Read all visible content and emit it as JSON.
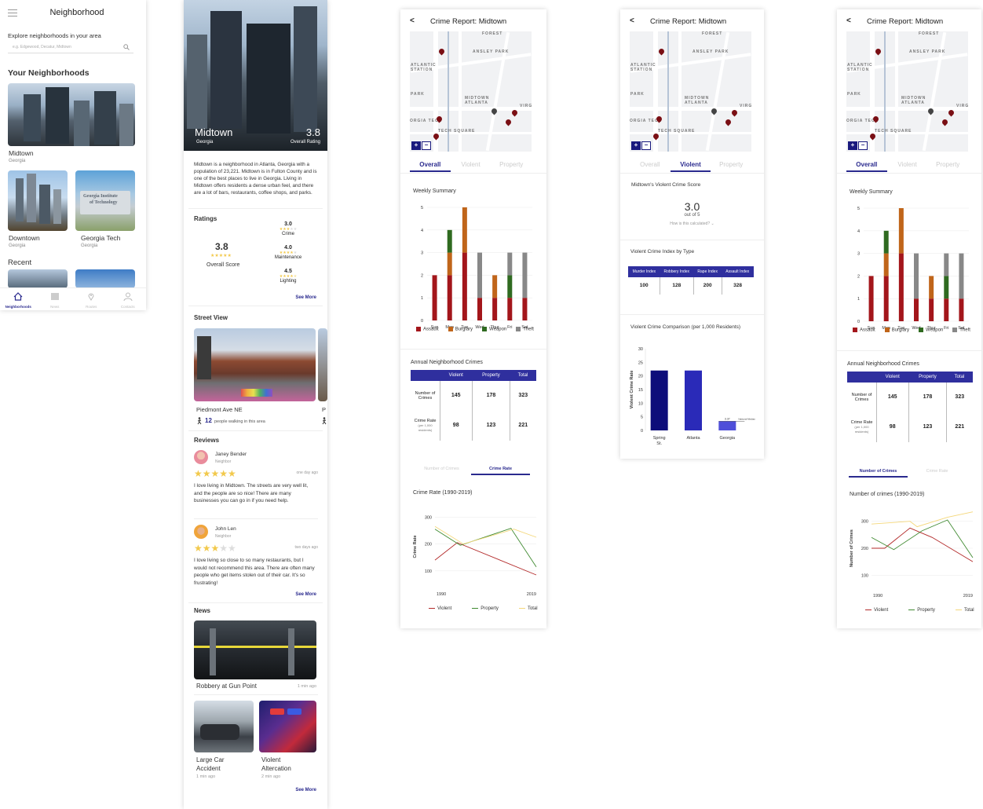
{
  "screen1": {
    "title": "Neighborhood",
    "explore_label": "Explore neighborhoods in your area",
    "search_placeholder": "e.g. Edgewood, Decatur, Midtown",
    "your_heading": "Your Neighborhoods",
    "neighborhoods": [
      {
        "name": "Midtown",
        "sub": "Georgia"
      },
      {
        "name": "Downtown",
        "sub": "Georgia"
      },
      {
        "name": "Georgia Tech",
        "sub": "Georgia"
      }
    ],
    "recent_heading": "Recent",
    "nav": [
      {
        "label": "Neighborhoods",
        "icon": "home-icon"
      },
      {
        "label": "News",
        "icon": "news-icon"
      },
      {
        "label": "Routes",
        "icon": "location-pin-icon"
      },
      {
        "label": "Contacts",
        "icon": "person-icon"
      }
    ]
  },
  "screen2": {
    "hero_title": "Midtown",
    "hero_sub": "Georgia",
    "hero_rating": "3.8",
    "hero_rating_label": "Overall Rating",
    "description": "Midtown is a neighborhood in Atlanta, Georgia with a population of 23,221. Midtown is in Fulton County and is one of the best places to live in Georgia. Living in Midtown offers residents a dense urban feel, and there are a lot of bars, restaurants, coffee shops, and parks.",
    "ratings_heading": "Ratings",
    "overall_score": "3.8",
    "overall_label": "Overall Score",
    "ratings": [
      {
        "value": "3.0",
        "label": "Crime",
        "stars": 3
      },
      {
        "value": "4.0",
        "label": "Maintenance",
        "stars": 4
      },
      {
        "value": "4.5",
        "label": "Lighting",
        "stars": 4.5
      }
    ],
    "see_more": "See More",
    "street_heading": "Street View",
    "street_name": "Piedmont Ave NE",
    "street_next_initial": "P",
    "walking_count": "12",
    "walking_text": "people walking in this area",
    "reviews_heading": "Reviews",
    "reviews": [
      {
        "name": "Janey Bender",
        "role": "Neighbor",
        "time": "one day ago",
        "stars": 5,
        "text": "I love living in Midtown. The streets are very well lit, and the people are so nice! There are many businesses you can go in if you need help."
      },
      {
        "name": "John Len",
        "role": "Neighbor",
        "time": "two days ago",
        "stars": 3,
        "text": "I love living so close to so many restaurants, but I would not recommend this area. There are often many people who get items stolen out of their car. It's so frustrating!"
      }
    ],
    "news_heading": "News",
    "news_main": {
      "title": "Robbery at Gun Point",
      "time": "1 min ago"
    },
    "news_small": [
      {
        "title": "Large Car Accident",
        "time": "1 min ago"
      },
      {
        "title": "Violent Altercation",
        "time": "2 min ago"
      }
    ]
  },
  "report": {
    "title": "Crime Report: Midtown",
    "back": "<",
    "tabs": [
      "Overall",
      "Violent",
      "Property"
    ],
    "map_labels": [
      "ANSLEY PARK",
      "ATLANTIC STATION",
      "MIDTOWN ATLANTA",
      "PARK",
      "ORGIA TECH",
      "TECH SQUARE",
      "VIRG",
      "FOREST"
    ],
    "zoom_in": "+",
    "zoom_out": "−",
    "weekly_heading": "Weekly Summary",
    "annual_heading": "Annual Neighborhood Crimes",
    "annual_cols": [
      "Violent",
      "Property",
      "Total"
    ],
    "annual_rows": [
      {
        "label": "Number of Crimes",
        "sub": "",
        "values": [
          "145",
          "178",
          "323"
        ]
      },
      {
        "label": "Crime Rate",
        "sub": "(per 1,000 residents)",
        "values": [
          "98",
          "123",
          "221"
        ]
      }
    ],
    "subtabs": [
      "Number of Crimes",
      "Crime Rate"
    ],
    "rate_heading": "Crime Rate (1990-2019)",
    "number_heading": "Number of crimes (1990-2019)"
  },
  "violent": {
    "score_heading": "Midtown's Violent Crime Score",
    "score": "3.0",
    "score_sub": "out of 5",
    "how_calc": "How is this calculated?",
    "index_heading": "Violent Crime Index by Type",
    "index_cols": [
      "Murder Index",
      "Robbery Index",
      "Rape Index",
      "Assault Index"
    ],
    "index_values": [
      "100",
      "128",
      "200",
      "328"
    ],
    "compare_heading": "Violent Crime Comparison (per 1,000 Residents)"
  },
  "chart_data": [
    {
      "type": "bar",
      "title": "Weekly Summary",
      "categories": [
        "Sun",
        "Mon",
        "Tue",
        "Wed",
        "Thur",
        "Fri",
        "Sat"
      ],
      "stacked": true,
      "ylim": [
        0,
        5
      ],
      "series": [
        {
          "name": "Assault",
          "values": [
            2,
            2,
            3,
            1,
            1,
            1,
            1
          ],
          "color": "#a3161b"
        },
        {
          "name": "Burglary",
          "values": [
            0,
            1,
            2,
            0,
            1,
            0,
            0
          ],
          "color": "#c0651a"
        },
        {
          "name": "Weapon",
          "values": [
            0,
            1,
            0,
            0,
            0,
            1,
            0
          ],
          "color": "#2f6a20"
        },
        {
          "name": "Theft",
          "values": [
            0,
            0,
            0,
            2,
            0,
            1,
            2
          ],
          "color": "#888888"
        }
      ]
    },
    {
      "type": "line",
      "title": "Crime Rate (1990-2019)",
      "ylabel": "Crime Rate",
      "x_labels": [
        "1990",
        "2019"
      ],
      "yticks": [
        100,
        200,
        300
      ],
      "ylim": [
        50,
        330
      ],
      "series": [
        {
          "name": "Violent",
          "color": "#b32a2a",
          "points": [
            [
              0,
              140
            ],
            [
              0.22,
              205
            ],
            [
              1,
              85
            ]
          ]
        },
        {
          "name": "Property",
          "color": "#3f8a30",
          "points": [
            [
              0,
              255
            ],
            [
              0.25,
              195
            ],
            [
              0.75,
              258
            ],
            [
              1,
              115
            ]
          ]
        },
        {
          "name": "Total",
          "color": "#f4d77a",
          "points": [
            [
              0,
              265
            ],
            [
              0.28,
              200
            ],
            [
              0.78,
              255
            ],
            [
              1,
              225
            ]
          ]
        }
      ]
    },
    {
      "type": "bar",
      "title": "Violent Crime Comparison (per 1,000 Residents)",
      "ylabel": "Violent Crime Rate",
      "categories": [
        "Spring St.",
        "Atlanta",
        "Georgia"
      ],
      "values": [
        22,
        22,
        3.37
      ],
      "value_labels": [
        "",
        "",
        "3.37"
      ],
      "annotation": "National Median",
      "ylim": [
        0,
        30
      ],
      "yticks": [
        0,
        5,
        10,
        15,
        20,
        25,
        30
      ],
      "colors": [
        "#0d0d7a",
        "#2a2ab8",
        "#4f4fd9"
      ]
    },
    {
      "type": "line",
      "title": "Number of crimes (1990-2019)",
      "ylabel": "Number of Crimes",
      "x_labels": [
        "1990",
        "2019"
      ],
      "yticks": [
        100,
        200,
        300
      ],
      "ylim": [
        60,
        340
      ],
      "series": [
        {
          "name": "Violent",
          "color": "#b32a2a",
          "points": [
            [
              0,
              200
            ],
            [
              0.13,
              200
            ],
            [
              0.38,
              275
            ],
            [
              0.6,
              240
            ],
            [
              1,
              150
            ]
          ]
        },
        {
          "name": "Property",
          "color": "#3f8a30",
          "points": [
            [
              0,
              240
            ],
            [
              0.22,
              195
            ],
            [
              0.5,
              265
            ],
            [
              0.75,
              305
            ],
            [
              1,
              165
            ]
          ]
        },
        {
          "name": "Total",
          "color": "#f4d77a",
          "points": [
            [
              0,
              290
            ],
            [
              0.38,
              300
            ],
            [
              0.45,
              280
            ],
            [
              0.75,
              315
            ],
            [
              1,
              335
            ]
          ]
        }
      ]
    }
  ]
}
